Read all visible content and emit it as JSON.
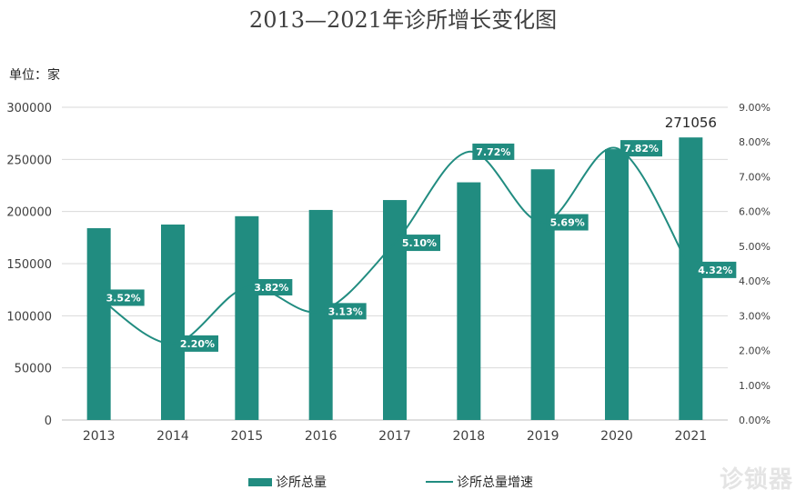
{
  "title": "2013—2021年诊所增长变化图",
  "unit_label": "单位：家",
  "watermark": "诊锁器",
  "colors": {
    "bar": "#218c80",
    "line": "#218c80",
    "label_bg": "#218c80",
    "grid": "#d9d9d9",
    "text": "#404040"
  },
  "legend": {
    "bar_label": "诊所总量",
    "line_label": "诊所总量增速"
  },
  "chart_data": {
    "type": "bar+line",
    "categories": [
      "2013",
      "2014",
      "2015",
      "2016",
      "2017",
      "2018",
      "2019",
      "2020",
      "2021"
    ],
    "series": [
      {
        "name": "诊所总量",
        "type": "bar",
        "axis": "left",
        "values": [
          184000,
          187500,
          195500,
          201500,
          211000,
          228000,
          240500,
          259800,
          271056
        ]
      },
      {
        "name": "诊所总量增速",
        "type": "line",
        "axis": "right",
        "values": [
          3.52,
          2.2,
          3.82,
          3.13,
          5.1,
          7.72,
          5.69,
          7.82,
          4.32
        ]
      }
    ],
    "bar_value_labels": [
      {
        "category": "2021",
        "text": "271056"
      }
    ],
    "line_value_labels": [
      "3.52%",
      "2.20%",
      "3.82%",
      "3.13%",
      "5.10%",
      "7.72%",
      "5.69%",
      "7.82%",
      "4.32%"
    ],
    "y_left": {
      "ylim": [
        0,
        300000
      ],
      "ticks": [
        "0",
        "50000",
        "100000",
        "150000",
        "200000",
        "250000",
        "300000"
      ]
    },
    "y_right": {
      "ylim": [
        0,
        9
      ],
      "ticks": [
        "0.00%",
        "1.00%",
        "2.00%",
        "3.00%",
        "4.00%",
        "5.00%",
        "6.00%",
        "7.00%",
        "8.00%",
        "9.00%"
      ]
    },
    "grid": true,
    "legend_position": "bottom"
  }
}
